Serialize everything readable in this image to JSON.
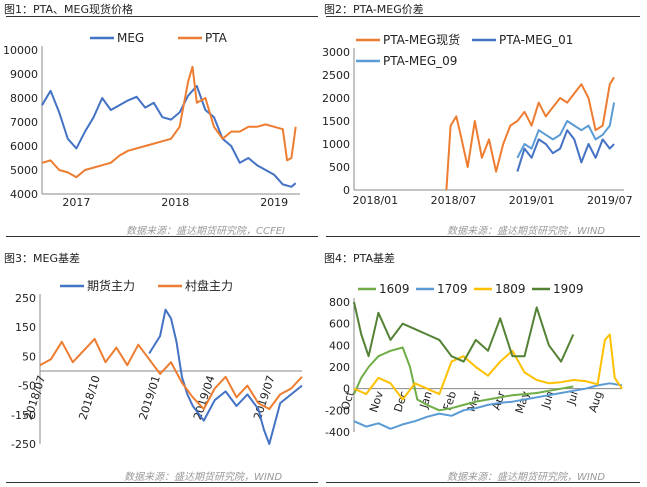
{
  "colors": {
    "blue": "#4472C4",
    "orange": "#ED7D31",
    "lightblue": "#5B9BD5",
    "yellow": "#FFC000",
    "green": "#548235",
    "grey": "#9a9a9a"
  },
  "figures": {
    "fig1": {
      "caption": "图1：PTA、MEG现货价格",
      "source": "数据来源：盛达期货研究院，CCFEI"
    },
    "fig2": {
      "caption": "图2：PTA-MEG价差",
      "source": "数据来源：盛达期货研究院，WIND"
    },
    "fig3": {
      "caption": "图3：MEG基差",
      "source": "数据来源：盛达期货研究院，WIND"
    },
    "fig4": {
      "caption": "图4：PTA基差",
      "source": "数据来源：盛达期货研究院，WIND"
    }
  },
  "chart_data": [
    {
      "id": "fig1",
      "type": "line",
      "title": "PTA、MEG现货价格",
      "x_ticks": [
        "2017",
        "2018",
        "2019"
      ],
      "y_ticks": [
        4000,
        5000,
        6000,
        7000,
        8000,
        9000,
        10000
      ],
      "ylim": [
        4000,
        10000
      ],
      "xlim": [
        0,
        30
      ],
      "series": [
        {
          "name": "MEG",
          "color": "#4472C4",
          "x": [
            0,
            1,
            2,
            3,
            4,
            5,
            6,
            7,
            8,
            9,
            10,
            11,
            12,
            13,
            14,
            15,
            16,
            17,
            18,
            19,
            20,
            21,
            22,
            23,
            24,
            25,
            26,
            27,
            28,
            29,
            29.5
          ],
          "y": [
            7700,
            8300,
            7400,
            6300,
            5900,
            6600,
            7200,
            8000,
            7500,
            7700,
            7900,
            8050,
            7600,
            7800,
            7200,
            7100,
            7400,
            8100,
            8500,
            7500,
            7200,
            6300,
            6000,
            5300,
            5500,
            5200,
            5000,
            4800,
            4400,
            4300,
            4450
          ]
        },
        {
          "name": "PTA",
          "color": "#ED7D31",
          "x": [
            0,
            1,
            2,
            3,
            4,
            5,
            6,
            7,
            8,
            9,
            10,
            11,
            12,
            13,
            14,
            15,
            16,
            17,
            17.5,
            18,
            19,
            20,
            21,
            22,
            23,
            24,
            25,
            26,
            27,
            28,
            28.5,
            29,
            29.5
          ],
          "y": [
            5300,
            5400,
            5000,
            4900,
            4700,
            5000,
            5100,
            5200,
            5300,
            5600,
            5800,
            5900,
            6000,
            6100,
            6200,
            6300,
            6800,
            8700,
            9300,
            7800,
            8000,
            6800,
            6300,
            6600,
            6600,
            6800,
            6800,
            6900,
            6800,
            6700,
            5400,
            5500,
            6800
          ]
        }
      ]
    },
    {
      "id": "fig2",
      "type": "line",
      "title": "PTA-MEG价差",
      "x_ticks": [
        "2018/01",
        "2018/07",
        "2019/01",
        "2019/07"
      ],
      "y_ticks": [
        0,
        500,
        1000,
        1500,
        2000,
        2500,
        3000
      ],
      "ylim": [
        0,
        3000
      ],
      "xlim": [
        0,
        19
      ],
      "series": [
        {
          "name": "PTA-MEG现货",
          "color": "#ED7D31",
          "x": [
            6.5,
            6.8,
            7.2,
            7.5,
            8,
            8.5,
            9,
            9.5,
            10,
            10.5,
            11,
            11.5,
            12,
            12.5,
            13,
            13.5,
            14,
            14.5,
            15,
            15.5,
            16,
            16.5,
            17,
            17.5,
            18,
            18.3
          ],
          "y": [
            0,
            1400,
            1600,
            1200,
            500,
            1500,
            700,
            1100,
            400,
            1000,
            1400,
            1500,
            1700,
            1400,
            1900,
            1600,
            1800,
            2000,
            1900,
            2100,
            2300,
            2000,
            1300,
            1400,
            2300,
            2450
          ]
        },
        {
          "name": "PTA-MEG_01",
          "color": "#4472C4",
          "x": [
            11.5,
            12,
            12.5,
            13,
            13.5,
            14,
            14.5,
            15,
            15.5,
            16,
            16.5,
            17,
            17.5,
            18,
            18.3
          ],
          "y": [
            400,
            900,
            700,
            1100,
            1000,
            800,
            900,
            1300,
            1100,
            600,
            1000,
            700,
            1100,
            900,
            1000
          ]
        },
        {
          "name": "PTA-MEG_09",
          "color": "#5B9BD5",
          "x": [
            11.5,
            12,
            12.5,
            13,
            13.5,
            14,
            14.5,
            15,
            15.5,
            16,
            16.5,
            17,
            17.5,
            18,
            18.3
          ],
          "y": [
            700,
            1000,
            900,
            1300,
            1200,
            1100,
            1200,
            1500,
            1400,
            1300,
            1400,
            1100,
            1200,
            1400,
            1900
          ]
        }
      ]
    },
    {
      "id": "fig3",
      "type": "line",
      "title": "MEG基差",
      "x_ticks": [
        "2018/07",
        "2018/10",
        "2019/01",
        "2019/04",
        "2019/07"
      ],
      "y_ticks": [
        -250,
        -150,
        -50,
        50,
        150,
        250
      ],
      "ylim": [
        -250,
        250
      ],
      "xlim": [
        0,
        24
      ],
      "series": [
        {
          "name": "期货主力",
          "color": "#4472C4",
          "x": [
            10,
            11,
            11.5,
            12,
            12.5,
            13,
            13.5,
            14,
            15,
            16,
            17,
            18,
            19,
            20,
            20.5,
            21,
            22,
            23,
            24
          ],
          "y": [
            60,
            120,
            210,
            180,
            100,
            -20,
            -80,
            -120,
            -170,
            -100,
            -70,
            -120,
            -80,
            -130,
            -200,
            -250,
            -110,
            -80,
            -50
          ]
        },
        {
          "name": "村盘主力",
          "color": "#ED7D31",
          "x": [
            0,
            1,
            2,
            3,
            4,
            5,
            6,
            7,
            8,
            9,
            10,
            11,
            12,
            13,
            14,
            15,
            16,
            17,
            18,
            19,
            20,
            21,
            22,
            23,
            24
          ],
          "y": [
            20,
            40,
            100,
            30,
            70,
            110,
            30,
            80,
            20,
            90,
            40,
            -10,
            30,
            -40,
            -90,
            -130,
            -60,
            -20,
            -90,
            -50,
            -110,
            -130,
            -80,
            -60,
            -20
          ]
        }
      ]
    },
    {
      "id": "fig4",
      "type": "line",
      "title": "PTA基差",
      "x_ticks": [
        "Oct",
        "Nov",
        "Dec",
        "Jan",
        "Feb",
        "Mar",
        "Apr",
        "May",
        "Jun",
        "Jul",
        "Aug"
      ],
      "y_ticks": [
        -400,
        -200,
        0,
        200,
        400,
        600,
        800
      ],
      "ylim": [
        -400,
        800
      ],
      "xlim": [
        0,
        11
      ],
      "series": [
        {
          "name": "1609",
          "color": "#70AD47",
          "x": [
            0,
            0.3,
            0.6,
            1,
            1.5,
            2,
            2.3,
            2.6,
            3,
            3.5,
            4,
            4.5,
            5,
            5.5,
            6,
            6.5,
            7,
            7.5,
            8,
            8.5,
            9
          ],
          "y": [
            -50,
            100,
            200,
            300,
            350,
            380,
            200,
            -100,
            -150,
            -200,
            -180,
            -150,
            -120,
            -100,
            -80,
            -60,
            -50,
            -40,
            -20,
            0,
            20
          ]
        },
        {
          "name": "1709",
          "color": "#5B9BD5",
          "x": [
            0,
            0.5,
            1,
            1.5,
            2,
            2.5,
            3,
            3.5,
            4,
            4.5,
            5,
            5.5,
            6,
            6.5,
            7,
            7.5,
            8,
            8.5,
            9,
            9.5,
            10,
            10.5,
            11
          ],
          "y": [
            -300,
            -350,
            -320,
            -370,
            -330,
            -300,
            -260,
            -230,
            -250,
            -200,
            -180,
            -150,
            -130,
            -120,
            -100,
            -80,
            -60,
            -40,
            -20,
            0,
            30,
            50,
            30
          ]
        },
        {
          "name": "1809",
          "color": "#FFC000",
          "x": [
            0,
            0.5,
            1,
            1.5,
            2,
            2.5,
            3,
            3.5,
            4,
            4.5,
            5,
            5.5,
            6,
            6.5,
            7,
            7.5,
            8,
            8.5,
            9,
            9.5,
            10,
            10.3,
            10.5,
            10.7,
            11
          ],
          "y": [
            0,
            -50,
            100,
            50,
            -100,
            50,
            0,
            -50,
            250,
            300,
            200,
            120,
            250,
            350,
            150,
            80,
            50,
            60,
            80,
            70,
            40,
            450,
            500,
            100,
            0
          ]
        },
        {
          "name": "1909",
          "color": "#548235",
          "x": [
            0,
            0.3,
            0.6,
            1,
            1.5,
            2,
            2.5,
            3,
            3.5,
            4,
            4.5,
            5,
            5.5,
            6,
            6.5,
            7,
            7.5,
            8,
            8.5,
            9
          ],
          "y": [
            800,
            500,
            300,
            700,
            450,
            600,
            550,
            500,
            450,
            300,
            250,
            450,
            350,
            650,
            300,
            300,
            750,
            400,
            250,
            500
          ]
        }
      ]
    }
  ]
}
